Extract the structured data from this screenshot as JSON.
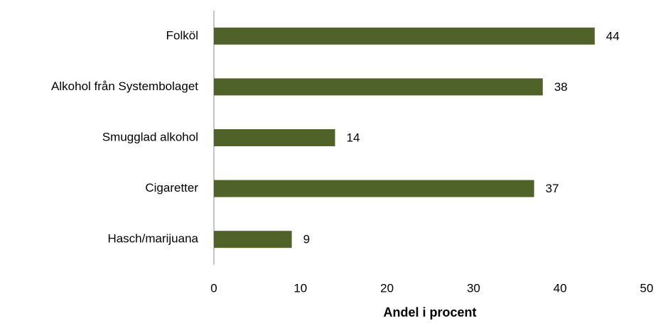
{
  "chart_data": {
    "type": "bar",
    "orientation": "horizontal",
    "categories": [
      "Folköl",
      "Alkohol från Systembolaget",
      "Smugglad alkohol",
      "Cigaretter",
      "Hasch/marijuana"
    ],
    "values": [
      44,
      38,
      14,
      37,
      9
    ],
    "color": "#4f6228",
    "x_label": "Andel i procent",
    "xlim": [
      0,
      50
    ],
    "xticks": [
      0,
      10,
      20,
      30,
      40,
      50
    ],
    "grid": false
  }
}
